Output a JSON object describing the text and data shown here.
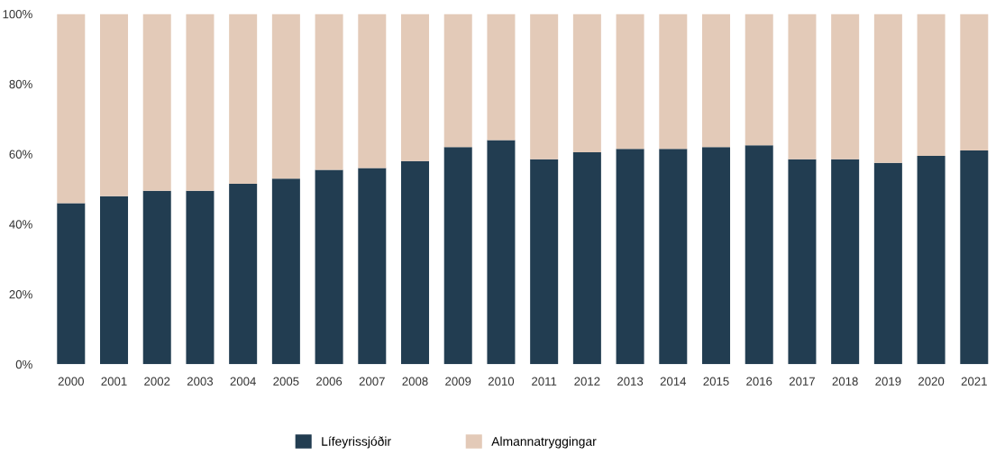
{
  "chart_data": {
    "type": "bar",
    "stacked": true,
    "categories": [
      "2000",
      "2001",
      "2002",
      "2003",
      "2004",
      "2005",
      "2006",
      "2007",
      "2008",
      "2009",
      "2010",
      "2011",
      "2012",
      "2013",
      "2014",
      "2015",
      "2016",
      "2017",
      "2018",
      "2019",
      "2020",
      "2021"
    ],
    "series": [
      {
        "name": "Lífeyrissjóðir",
        "color": "#223d51",
        "values": [
          46,
          48,
          49.5,
          49.5,
          51.5,
          53,
          55.5,
          56,
          58,
          62,
          64,
          58.5,
          60.5,
          61.5,
          61.5,
          62,
          62.5,
          58.5,
          58.5,
          57.5,
          59.5,
          61
        ]
      },
      {
        "name": "Almannatryggingar",
        "color": "#e3cab8",
        "values": [
          54,
          52,
          50.5,
          50.5,
          48.5,
          47,
          44.5,
          44,
          42,
          38,
          36,
          41.5,
          39.5,
          38.5,
          38.5,
          38,
          37.5,
          41.5,
          41.5,
          42.5,
          40.5,
          39
        ]
      }
    ],
    "ylim": [
      0,
      100
    ],
    "yticks": [
      {
        "value": 0,
        "label": "0%"
      },
      {
        "value": 20,
        "label": "20%"
      },
      {
        "value": 40,
        "label": "40%"
      },
      {
        "value": 60,
        "label": "60%"
      },
      {
        "value": 80,
        "label": "80%"
      },
      {
        "value": 100,
        "label": "100%"
      }
    ],
    "grid": false,
    "legend": "bottom"
  }
}
